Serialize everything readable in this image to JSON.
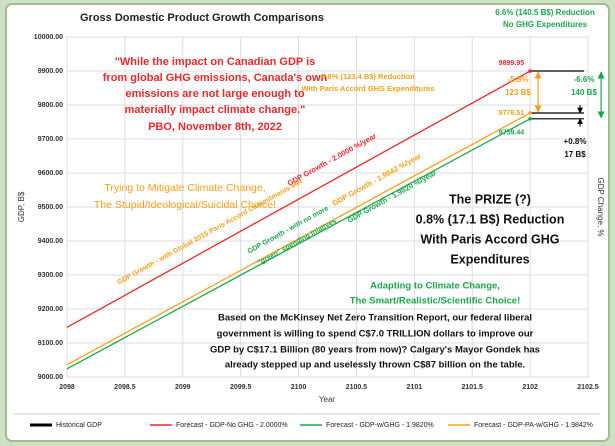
{
  "chart_data": {
    "type": "line",
    "title": "Gross Domestic Product Growth Comparisons",
    "xlabel": "Year",
    "ylabel": "GDP, B$",
    "y2label": "GDP Change, %",
    "x": [
      2098,
      2102
    ],
    "xlim": [
      2098,
      2102.5
    ],
    "xticks": [
      2098,
      2098.5,
      2099,
      2099.5,
      2100,
      2100.5,
      2101,
      2101.5,
      2102,
      2102.5
    ],
    "ylim": [
      9000,
      10000
    ],
    "yticks": [
      {
        "value": 9000,
        "label": "9000.00"
      },
      {
        "value": 9100,
        "label": "9100.00"
      },
      {
        "value": 9200,
        "label": "9200.00"
      },
      {
        "value": 9300,
        "label": "9300.00"
      },
      {
        "value": 9400,
        "label": "9400.00"
      },
      {
        "value": 9500,
        "label": "9500.00"
      },
      {
        "value": 9600,
        "label": "9600.00"
      },
      {
        "value": 9700,
        "label": "9700.00"
      },
      {
        "value": 9800,
        "label": "9800.00"
      },
      {
        "value": 9900,
        "label": "9900.00"
      },
      {
        "value": 10000,
        "label": "10000.00"
      }
    ],
    "grid": true,
    "legend": "bottom",
    "series": [
      {
        "name": "Historical GDP",
        "color": "#000000",
        "values": [
          null,
          null
        ]
      },
      {
        "name": "Forecast - GDP-No GHG - 2.0000%",
        "color": "#e8282b",
        "values": [
          9146,
          9899.95
        ]
      },
      {
        "name": "Forecast - GDP-w/GHG - 1.9820%",
        "color": "#1aa64a",
        "values": [
          9024,
          9759.44
        ]
      },
      {
        "name": "Forecast - GDP-PA-w/GHG - 1.9842%",
        "color": "#f5a01a",
        "values": [
          9036,
          9776.51
        ]
      }
    ],
    "annotations": [
      "\"While the impact on Canadian GDP is",
      "from global GHG emissions, Canada's own",
      "emissions are not large enough to",
      "materially impact climate change.\"",
      "PBO, November 8th, 2022",
      "6.6% (140.5 B$) Reduction",
      "No GHG Expenditures",
      "5.8% (123.4 B$) Reduction",
      "With Paris Accord GHG Expenditures",
      "Trying to Mitigate Climate Change,",
      "The Stupid/Ideological/Suicidal Choice!",
      "The PRIZE (?)",
      "0.8% (17.1 B$) Reduction",
      "With Paris Accord GHG",
      "Expenditures",
      "Adapting to Climate Change,",
      "The Smart/Realistic/Scientific Choice!",
      "Based on the McKinsey Net Zero Transition Report, our federal liberal",
      "government is willing to spend C$7.0 TRILLION dollars to improve our",
      "GDP by C$17.1 Billion (80 years from now)? Calgary's Mayor Gondek has",
      "already stepped up and uselessly thrown C$87 billion on the table.",
      "-5.8%",
      "123 B$",
      "-6.6%",
      "140 B$",
      "+0.8%",
      "17 B$",
      "GDP Growth - 2.0000 %/year",
      "GDP Growth - 1.9842 %/year",
      "GDP Growth - 1.9820 %/year",
      "GDP Growth - with Global 2015 Paris Accord Commitments Met",
      "GDP Growth - with no more",
      "\"green\" spending iniatives"
    ]
  }
}
